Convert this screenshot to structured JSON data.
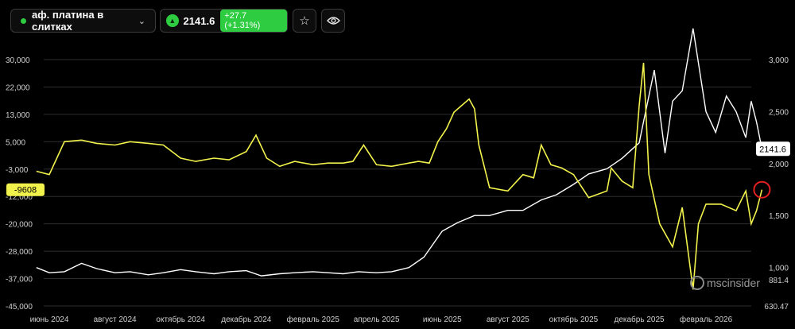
{
  "instrument": {
    "name": "аф. платина в слитках",
    "dot_color": "#2ecc40",
    "dropdown_icon": "chevron-down-icon"
  },
  "quote": {
    "price": "2141.6",
    "change": "+27.7 (+1.31%)",
    "direction_icon": "triangle-up-icon",
    "up_color": "#2ecc40"
  },
  "toolbar_icons": {
    "favorite": "star-icon",
    "visibility": "eye-icon"
  },
  "watermark": "mscinsider",
  "chart_data": {
    "type": "line",
    "colors": {
      "net_position": "#f2f24c",
      "price": "#ffffff",
      "grid": "#2e2e2e"
    },
    "x_ticks": [
      {
        "label": "июнь 2024",
        "x": "2024-06"
      },
      {
        "label": "август 2024",
        "x": "2024-08"
      },
      {
        "label": "октябрь 2024",
        "x": "2024-10"
      },
      {
        "label": "декабрь 2024",
        "x": "2024-12"
      },
      {
        "label": "февраль 2025",
        "x": "2025-02"
      },
      {
        "label": "апрель 2025",
        "x": "2025-04"
      },
      {
        "label": "июнь 2025",
        "x": "2025-06"
      },
      {
        "label": "август 2025",
        "x": "2025-08"
      },
      {
        "label": "октябрь 2025",
        "x": "2025-10"
      },
      {
        "label": "декабрь 2025",
        "x": "2025-12"
      },
      {
        "label": "февраль 2026",
        "x": "2026-02"
      }
    ],
    "y_left": {
      "ticks": [
        "30,000",
        "22,000",
        "13,000",
        "5,000",
        "-3,000",
        "-12,000",
        "-20,000",
        "-28,000",
        "-37,000",
        "-45,000"
      ],
      "range": [
        -45000,
        30000
      ]
    },
    "y_right": {
      "ticks": [
        "3,000",
        "2,500",
        "2,000",
        "1,500",
        "1,000",
        "881.4",
        "630.47"
      ],
      "range": [
        630.47,
        3300
      ]
    },
    "last_labels": {
      "net_position": "-9608",
      "price": "2141.6"
    },
    "series": [
      {
        "axis": "left",
        "x": [
          "2024-05-20",
          "2024-06-01",
          "2024-06-15",
          "2024-07-01",
          "2024-07-15",
          "2024-08-01",
          "2024-08-15",
          "2024-09-01",
          "2024-09-15",
          "2024-10-01",
          "2024-10-15",
          "2024-11-01",
          "2024-11-15",
          "2024-12-01",
          "2024-12-10",
          "2024-12-20",
          "2025-01-01",
          "2025-01-15",
          "2025-02-01",
          "2025-02-15",
          "2025-03-01",
          "2025-03-10",
          "2025-03-20",
          "2025-04-01",
          "2025-04-15",
          "2025-05-01",
          "2025-05-10",
          "2025-05-20",
          "2025-05-28",
          "2025-06-05",
          "2025-06-12",
          "2025-06-19",
          "2025-06-26",
          "2025-07-01",
          "2025-07-05",
          "2025-07-15",
          "2025-08-01",
          "2025-08-15",
          "2025-08-25",
          "2025-09-01",
          "2025-09-10",
          "2025-09-20",
          "2025-10-01",
          "2025-10-15",
          "2025-11-01",
          "2025-11-05",
          "2025-11-15",
          "2025-11-25",
          "2025-12-01",
          "2025-12-05",
          "2025-12-10",
          "2025-12-20",
          "2026-01-01",
          "2026-01-10",
          "2026-01-20",
          "2026-01-25",
          "2026-02-01",
          "2026-02-15",
          "2026-03-01",
          "2026-03-10",
          "2026-03-15",
          "2026-03-20",
          "2026-03-25"
        ],
        "y": [
          -4000,
          -5000,
          5000,
          5500,
          4500,
          4000,
          5000,
          4500,
          4000,
          0,
          -1000,
          0,
          -500,
          2000,
          7000,
          0,
          -2500,
          -1000,
          -2000,
          -1500,
          -1500,
          -1000,
          4000,
          -2000,
          -2500,
          -1500,
          -1000,
          -1500,
          5000,
          9000,
          14000,
          16000,
          18000,
          15000,
          4000,
          -9000,
          -10000,
          -5000,
          -6000,
          4000,
          -2000,
          -3000,
          -5000,
          -12000,
          -10000,
          -3000,
          -7000,
          -9000,
          16000,
          29000,
          -5000,
          -20000,
          -27000,
          -15000,
          -40000,
          -20000,
          -14000,
          -14000,
          -16000,
          -10000,
          -20000,
          -16000,
          -9608
        ]
      },
      {
        "axis": "right",
        "x": [
          "2024-05-20",
          "2024-06-01",
          "2024-06-15",
          "2024-07-01",
          "2024-07-15",
          "2024-08-01",
          "2024-08-15",
          "2024-09-01",
          "2024-09-15",
          "2024-10-01",
          "2024-10-15",
          "2024-11-01",
          "2024-11-15",
          "2024-12-01",
          "2024-12-15",
          "2025-01-01",
          "2025-01-15",
          "2025-02-01",
          "2025-02-15",
          "2025-03-01",
          "2025-03-15",
          "2025-04-01",
          "2025-04-15",
          "2025-05-01",
          "2025-05-15",
          "2025-06-01",
          "2025-06-15",
          "2025-07-01",
          "2025-07-15",
          "2025-08-01",
          "2025-08-15",
          "2025-09-01",
          "2025-09-15",
          "2025-10-01",
          "2025-10-15",
          "2025-11-01",
          "2025-11-15",
          "2025-12-01",
          "2025-12-15",
          "2025-12-25",
          "2026-01-01",
          "2026-01-10",
          "2026-01-20",
          "2026-02-01",
          "2026-02-10",
          "2026-02-20",
          "2026-03-01",
          "2026-03-10",
          "2026-03-15",
          "2026-03-20",
          "2026-03-25"
        ],
        "y": [
          1000,
          950,
          960,
          1040,
          990,
          950,
          960,
          930,
          950,
          980,
          960,
          940,
          960,
          970,
          920,
          940,
          950,
          960,
          950,
          940,
          960,
          950,
          960,
          1000,
          1100,
          1350,
          1430,
          1500,
          1500,
          1550,
          1550,
          1650,
          1700,
          1800,
          1900,
          1950,
          2050,
          2200,
          2900,
          2100,
          2600,
          2700,
          3300,
          2500,
          2300,
          2650,
          2500,
          2250,
          2600,
          2400,
          2141.6
        ]
      }
    ]
  }
}
